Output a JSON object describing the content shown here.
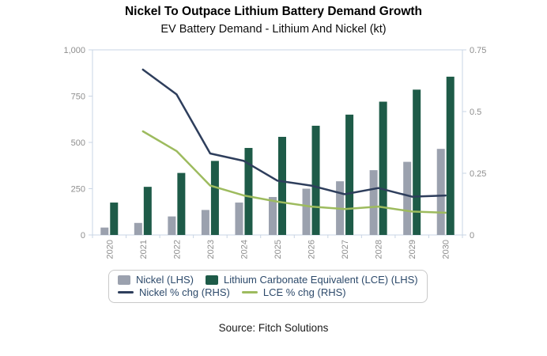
{
  "header": {
    "title": "Nickel To Outpace Lithium Battery Demand Growth",
    "subtitle": "EV Battery Demand - Lithium And Nickel (kt)"
  },
  "footer": {
    "source": "Source: Fitch Solutions"
  },
  "colors": {
    "nickel_bar": "#9ba1ae",
    "lce_bar": "#1e5b48",
    "nickel_line": "#2e3e5c",
    "lce_line": "#9dbb5e",
    "axis": "#c9d5e4",
    "tick_label": "#8e8e8e",
    "legend_text": "#2d4a6b",
    "legend_border": "#c9c9c9"
  },
  "legend": {
    "rows": [
      [
        {
          "swatch": "rect",
          "color_key": "nickel_bar",
          "label": "Nickel (LHS)"
        },
        {
          "swatch": "rect",
          "color_key": "lce_bar",
          "label": "Lithium Carbonate Equivalent (LCE) (LHS)"
        }
      ],
      [
        {
          "swatch": "line",
          "color_key": "nickel_line",
          "label": "Nickel % chg (RHS)"
        },
        {
          "swatch": "line",
          "color_key": "lce_line",
          "label": "LCE % chg (RHS)"
        }
      ]
    ]
  },
  "chart_data": {
    "type": "bar",
    "title": "Nickel To Outpace Lithium Battery Demand Growth",
    "subtitle": "EV Battery Demand - Lithium And Nickel (kt)",
    "categories": [
      "2020",
      "2021",
      "2022",
      "2023",
      "2024",
      "2025",
      "2026",
      "2027",
      "2028",
      "2029",
      "2030"
    ],
    "bar_series": [
      {
        "name": "Nickel (LHS)",
        "axis": "left",
        "color_key": "nickel_bar",
        "values": [
          40,
          65,
          100,
          135,
          175,
          205,
          250,
          290,
          350,
          395,
          465
        ]
      },
      {
        "name": "Lithium Carbonate Equivalent (LCE) (LHS)",
        "axis": "left",
        "color_key": "lce_bar",
        "values": [
          175,
          260,
          335,
          400,
          470,
          530,
          590,
          650,
          720,
          785,
          855
        ]
      }
    ],
    "line_series": [
      {
        "name": "Nickel % chg (RHS)",
        "axis": "right",
        "color_key": "nickel_line",
        "values": [
          null,
          0.67,
          0.57,
          0.33,
          0.3,
          0.22,
          0.2,
          0.165,
          0.19,
          0.155,
          0.16
        ]
      },
      {
        "name": "LCE % chg (RHS)",
        "axis": "right",
        "color_key": "lce_line",
        "values": [
          null,
          0.42,
          0.34,
          0.2,
          0.16,
          0.135,
          0.115,
          0.105,
          0.115,
          0.095,
          0.09
        ]
      }
    ],
    "left_axis": {
      "min": 0,
      "max": 1000,
      "ticks": [
        {
          "v": 0,
          "label": "0"
        },
        {
          "v": 250,
          "label": "250"
        },
        {
          "v": 500,
          "label": "500"
        },
        {
          "v": 750,
          "label": "750"
        },
        {
          "v": 1000,
          "label": "1,000"
        }
      ]
    },
    "right_axis": {
      "min": 0,
      "max": 0.75,
      "ticks": [
        {
          "v": 0,
          "label": "0"
        },
        {
          "v": 0.25,
          "label": "0.25"
        },
        {
          "v": 0.5,
          "label": "0.5"
        },
        {
          "v": 0.75,
          "label": "0.75"
        }
      ]
    },
    "grid": false,
    "legend_position": "bottom"
  }
}
